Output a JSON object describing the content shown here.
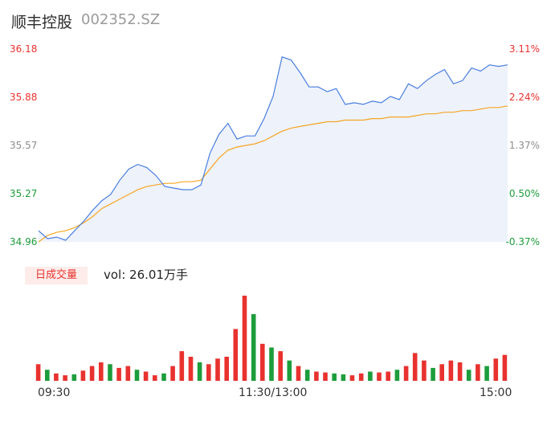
{
  "header": {
    "name": "顺丰控股",
    "code": "002352.SZ"
  },
  "price_axis": {
    "left_ticks": [
      "36.18",
      "35.88",
      "35.57",
      "35.27",
      "34.96"
    ],
    "right_ticks": [
      "3.11%",
      "2.24%",
      "1.37%",
      "0.50%",
      "-0.37%"
    ]
  },
  "volume_panel": {
    "badge": "日成交量",
    "vol_text": "vol: 26.01万手"
  },
  "time_axis": {
    "labels": [
      "09:30",
      "11:30/13:00",
      "15:00"
    ]
  },
  "colors": {
    "price": "#4a7fe0",
    "avg": "#f5a623",
    "up": "#e8322f",
    "down": "#1d9d3c",
    "area": "#eef2fb"
  },
  "chart_data": [
    {
      "type": "line",
      "ylim": [
        34.96,
        36.18
      ],
      "series": [
        {
          "values": [
            35.03,
            34.98,
            34.99,
            34.97,
            35.03,
            35.09,
            35.16,
            35.22,
            35.26,
            35.35,
            35.42,
            35.45,
            35.43,
            35.38,
            35.31,
            35.3,
            35.29,
            35.29,
            35.32,
            35.52,
            35.64,
            35.71,
            35.61,
            35.63,
            35.63,
            35.74,
            35.88,
            36.13,
            36.11,
            36.03,
            35.94,
            35.94,
            35.91,
            35.93,
            35.83,
            35.84,
            35.83,
            35.85,
            35.84,
            35.88,
            35.86,
            35.96,
            35.93,
            35.98,
            36.02,
            36.05,
            35.96,
            35.98,
            36.06,
            36.04,
            36.08,
            36.07,
            36.08
          ]
        },
        {
          "values": [
            34.96,
            35.0,
            35.02,
            35.03,
            35.05,
            35.08,
            35.12,
            35.17,
            35.2,
            35.23,
            35.26,
            35.29,
            35.31,
            35.32,
            35.33,
            35.33,
            35.34,
            35.34,
            35.35,
            35.42,
            35.49,
            35.54,
            35.56,
            35.57,
            35.58,
            35.6,
            35.63,
            35.66,
            35.68,
            35.69,
            35.7,
            35.71,
            35.72,
            35.72,
            35.73,
            35.73,
            35.73,
            35.74,
            35.74,
            35.75,
            35.75,
            35.75,
            35.76,
            35.77,
            35.77,
            35.78,
            35.78,
            35.79,
            35.79,
            35.8,
            35.81,
            35.81,
            35.82
          ]
        }
      ]
    },
    {
      "type": "bar",
      "values": [
        0.9,
        0.6,
        0.4,
        0.3,
        0.35,
        0.55,
        0.8,
        1.0,
        0.9,
        0.7,
        0.8,
        0.6,
        0.5,
        0.3,
        0.4,
        0.8,
        1.6,
        1.3,
        1.0,
        0.9,
        1.2,
        1.3,
        2.8,
        4.6,
        3.6,
        2.0,
        1.8,
        1.6,
        1.1,
        0.8,
        0.6,
        0.5,
        0.45,
        0.4,
        0.35,
        0.3,
        0.4,
        0.5,
        0.45,
        0.5,
        0.6,
        0.8,
        1.5,
        1.1,
        0.7,
        0.9,
        1.1,
        1.0,
        0.6,
        0.9,
        0.8,
        1.2,
        1.4
      ],
      "up": [
        true,
        false,
        true,
        true,
        false,
        true,
        true,
        true,
        false,
        true,
        true,
        false,
        true,
        true,
        false,
        true,
        true,
        true,
        false,
        true,
        true,
        true,
        true,
        true,
        false,
        true,
        false,
        true,
        false,
        true,
        false,
        true,
        true,
        false,
        false,
        true,
        true,
        false,
        true,
        true,
        false,
        true,
        true,
        true,
        false,
        true,
        true,
        true,
        false,
        true,
        false,
        true,
        true
      ]
    }
  ]
}
